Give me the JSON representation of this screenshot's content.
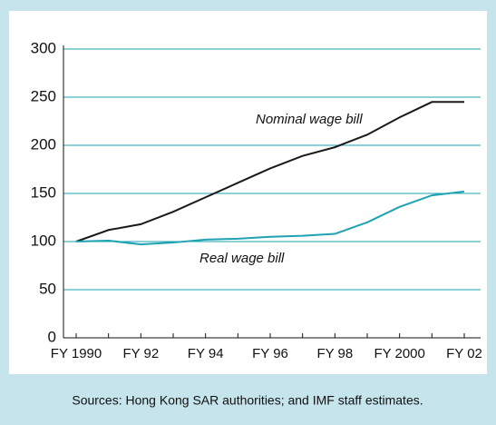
{
  "chart_data": {
    "type": "line",
    "categories": [
      "FY 1990",
      null,
      "FY 92",
      null,
      "FY 94",
      null,
      "FY 96",
      null,
      "FY 98",
      null,
      "FY 2000",
      null,
      "FY 02"
    ],
    "series": [
      {
        "name": "Nominal wage bill",
        "color": "#1a1a1a",
        "values": [
          100,
          112,
          118,
          131,
          146,
          161,
          176,
          189,
          198,
          211,
          229,
          245,
          245
        ]
      },
      {
        "name": "Real wage bill",
        "color": "#1fa3b3",
        "values": [
          100,
          101,
          97,
          99,
          102,
          103,
          105,
          106,
          108,
          120,
          136,
          148,
          152
        ]
      }
    ],
    "ylim": [
      0,
      300
    ],
    "yticks": [
      0,
      50,
      100,
      150,
      200,
      250,
      300
    ],
    "grid": true,
    "source": "Sources: Hong Kong SAR authorities; and IMF staff estimates."
  }
}
